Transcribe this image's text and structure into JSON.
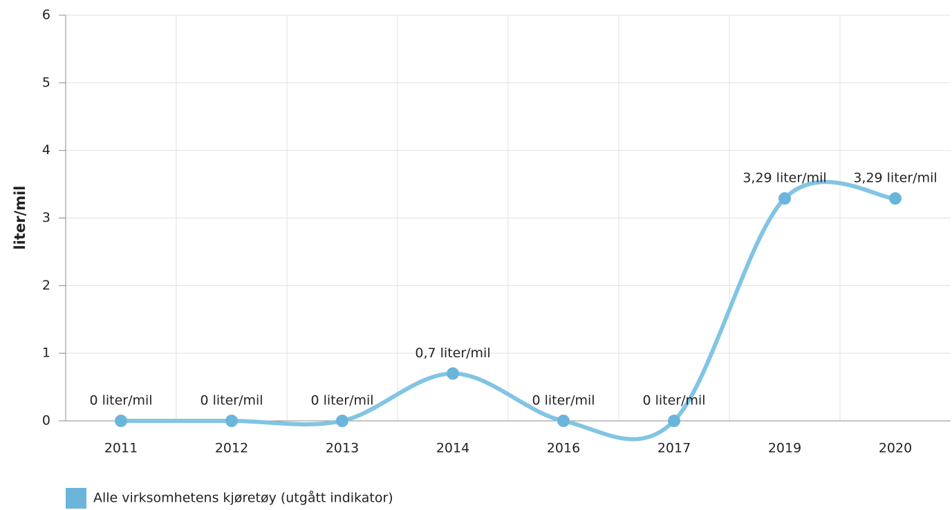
{
  "chart_data": {
    "type": "line",
    "y_axis_label": "liter/mil",
    "categories": [
      "2011",
      "2012",
      "2013",
      "2014",
      "2016",
      "2017",
      "2019",
      "2020"
    ],
    "series": [
      {
        "name": "Alle virksomhetens kjøretøy (utgått indikator)",
        "color": "#6bb5db",
        "values": [
          0,
          0,
          0,
          0.7,
          0,
          0,
          3.29,
          3.29
        ],
        "value_labels": [
          "0 liter/mil",
          "0 liter/mil",
          "0 liter/mil",
          "0,7 liter/mil",
          "0 liter/mil",
          "0 liter/mil",
          "3,29 liter/mil",
          "3,29 liter/mil"
        ]
      }
    ],
    "ylim": [
      0,
      6
    ],
    "yticks": [
      0,
      1,
      2,
      3,
      4,
      5,
      6
    ],
    "grid": true,
    "legend": "bottom-left"
  }
}
